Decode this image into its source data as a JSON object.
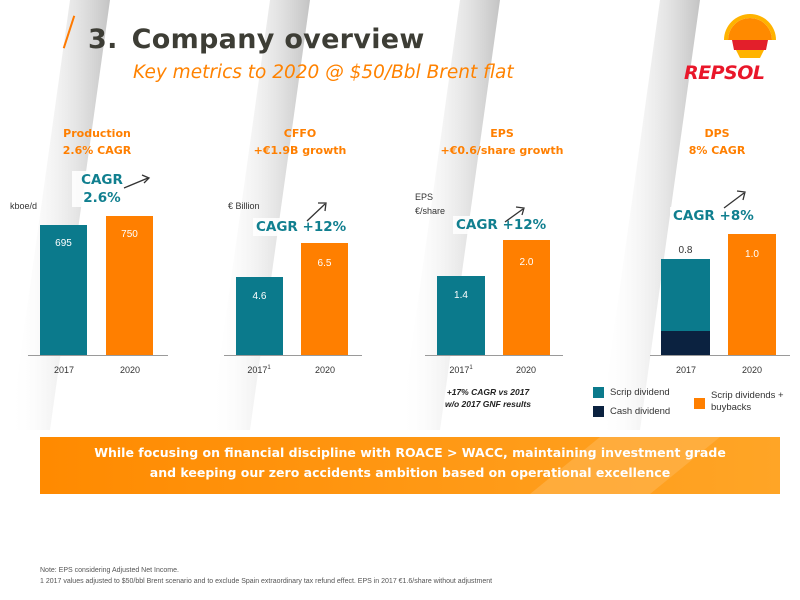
{
  "header": {
    "section_number": "3.",
    "title": "Company overview",
    "subtitle": "Key metrics to 2020 @ $50/Bbl Brent flat",
    "brand": "REPSOL"
  },
  "colors": {
    "teal": "#0b7a8c",
    "orange": "#ff7f00",
    "navy": "#0b2240",
    "title_text": "#3d3d35"
  },
  "kpis": [
    {
      "heading_line1": "Production",
      "heading_line2": "2.6% CAGR",
      "unit": "kboe/d",
      "cagr_label_line1": "CAGR",
      "cagr_label_line2": "2.6%",
      "bars": [
        {
          "category": "2017",
          "value": 695,
          "label": "695",
          "color": "teal"
        },
        {
          "category": "2020",
          "value": 750,
          "label": "750",
          "color": "orange"
        }
      ]
    },
    {
      "heading_line1": "CFFO",
      "heading_line2": "+€1.9B growth",
      "unit": "€ Billion",
      "cagr_label": "CAGR +12%",
      "bars": [
        {
          "category": "2017",
          "footnote": "1",
          "value": 4.6,
          "label": "4.6",
          "color": "teal"
        },
        {
          "category": "2020",
          "value": 6.5,
          "label": "6.5",
          "color": "orange"
        }
      ]
    },
    {
      "heading_line1": "EPS",
      "heading_line2": "+€0.6/share growth",
      "unit_line1": "EPS",
      "unit_line2": "€/share",
      "cagr_label": "CAGR +12%",
      "note_line1": "+17% CAGR vs 2017",
      "note_line2": "w/o 2017 GNF results",
      "bars": [
        {
          "category": "2017",
          "footnote": "1",
          "value": 1.4,
          "label": "1.4",
          "color": "teal"
        },
        {
          "category": "2020",
          "value": 2.0,
          "label": "2.0",
          "color": "orange"
        }
      ]
    },
    {
      "heading_line1": "DPS",
      "heading_line2": "8% CAGR",
      "cagr_label": "CAGR +8%",
      "bars": [
        {
          "category": "2017",
          "value": 0.8,
          "label": "0.8",
          "segments": [
            {
              "name": "Scrip dividend",
              "share": 0.69,
              "color": "teal"
            },
            {
              "name": "Cash dividend",
              "share": 0.31,
              "color": "navy"
            }
          ]
        },
        {
          "category": "2020",
          "value": 1.0,
          "label": "1.0",
          "color": "orange"
        }
      ],
      "legend": [
        {
          "label": "Scrip dividend",
          "color": "teal"
        },
        {
          "label": "Cash dividend",
          "color": "navy"
        },
        {
          "label": "Scrip dividends + buybacks",
          "color": "orange"
        }
      ]
    }
  ],
  "banner": {
    "line1": "While focusing on financial discipline with ROACE > WACC, maintaining investment grade",
    "line2": "and keeping our zero accidents ambition based on operational excellence"
  },
  "footnotes": {
    "line1": "Note: EPS considering Adjusted Net Income.",
    "line2": "1 2017 values adjusted to $50/bbl Brent scenario and to exclude Spain extraordinary tax refund effect. EPS in 2017 €1.6/share without adjustment"
  }
}
